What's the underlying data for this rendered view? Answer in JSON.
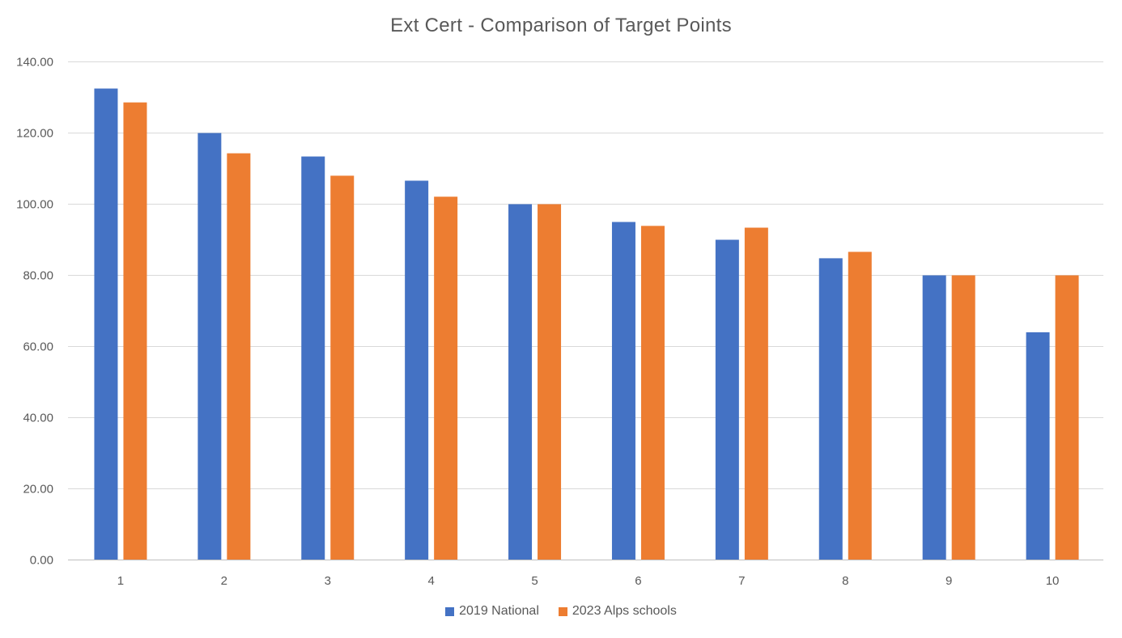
{
  "chart_data": {
    "type": "bar",
    "title": "Ext Cert - Comparison  of Target Points",
    "xlabel": "",
    "ylabel": "",
    "categories": [
      "1",
      "2",
      "3",
      "4",
      "5",
      "6",
      "7",
      "8",
      "9",
      "10"
    ],
    "series": [
      {
        "name": "2019 National",
        "color": "#4472C4",
        "values": [
          132.5,
          120.0,
          113.4,
          106.6,
          100.0,
          95.0,
          90.0,
          84.8,
          80.0,
          64.0
        ]
      },
      {
        "name": "2023 Alps schools",
        "color": "#ED7D31",
        "values": [
          128.6,
          114.3,
          108.0,
          102.1,
          100.0,
          93.9,
          93.4,
          86.6,
          80.0,
          80.0
        ]
      }
    ],
    "ylim": [
      0,
      140
    ],
    "yticks": [
      "0.00",
      "20.00",
      "40.00",
      "60.00",
      "80.00",
      "100.00",
      "120.00",
      "140.00"
    ],
    "grid": true,
    "legend": "bottom"
  }
}
